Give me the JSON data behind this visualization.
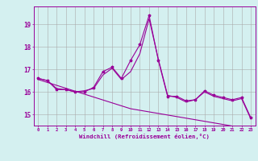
{
  "xlabel": "Windchill (Refroidissement éolien,°C)",
  "x": [
    0,
    1,
    2,
    3,
    4,
    5,
    6,
    7,
    8,
    9,
    10,
    11,
    12,
    13,
    14,
    15,
    16,
    17,
    18,
    19,
    20,
    21,
    22,
    23
  ],
  "y_main": [
    16.6,
    16.5,
    16.1,
    16.1,
    16.0,
    16.0,
    16.2,
    16.9,
    17.1,
    16.6,
    17.4,
    18.1,
    19.4,
    17.4,
    15.8,
    15.8,
    15.6,
    15.65,
    16.05,
    15.85,
    15.75,
    15.65,
    15.75,
    14.85
  ],
  "y_smooth": [
    16.6,
    16.5,
    16.15,
    16.1,
    16.0,
    16.05,
    16.15,
    16.75,
    17.05,
    16.55,
    16.9,
    17.7,
    19.25,
    17.45,
    15.85,
    15.75,
    15.55,
    15.65,
    16.0,
    15.8,
    15.7,
    15.6,
    15.7,
    14.8
  ],
  "y_linear": [
    16.55,
    16.42,
    16.29,
    16.16,
    16.03,
    15.9,
    15.77,
    15.64,
    15.51,
    15.38,
    15.25,
    15.18,
    15.11,
    15.04,
    14.97,
    14.9,
    14.83,
    14.76,
    14.69,
    14.62,
    14.55,
    14.48,
    14.41,
    14.34
  ],
  "line_color": "#990099",
  "bg_color": "#d4f0f0",
  "grid_color": "#aaaaaa",
  "ylim": [
    14.5,
    19.8
  ],
  "yticks": [
    15,
    16,
    17,
    18,
    19
  ],
  "xticks": [
    0,
    1,
    2,
    3,
    4,
    5,
    6,
    7,
    8,
    9,
    10,
    11,
    12,
    13,
    14,
    15,
    16,
    17,
    18,
    19,
    20,
    21,
    22,
    23
  ]
}
